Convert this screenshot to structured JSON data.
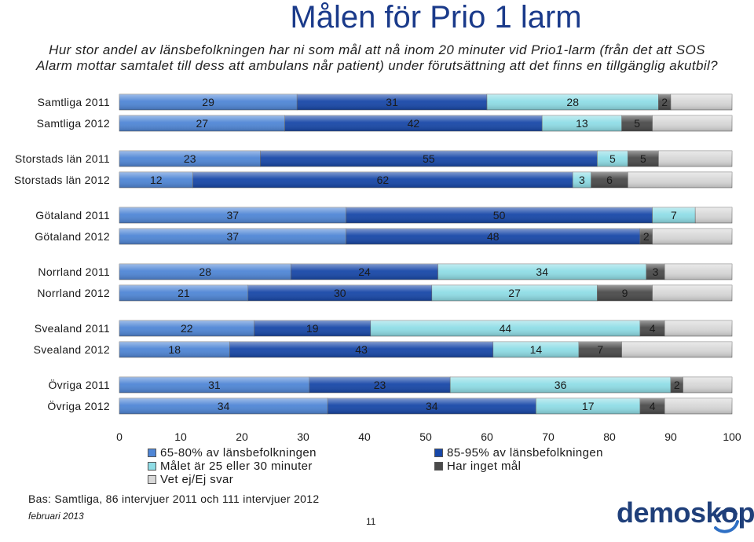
{
  "page": {
    "title": "Målen för Prio 1 larm",
    "subtitle": "Hur stor andel av länsbefolkningen har ni som mål att nå inom 20 minuter vid Prio1-larm (från det att SOS Alarm mottar samtalet till dess att ambulans når patient) under förutsättning att det finns en tillgänglig akutbil?",
    "base_note": "Bas: Samtliga, 86 intervjuer 2011 och 111 intervjuer 2012",
    "date": "februari 2013",
    "page_number": "11",
    "logo": "demoskop"
  },
  "colors": {
    "s0": "#4f86d6",
    "s1": "#1747a8",
    "s2": "#8fdde6",
    "s3": "#4a4a4a",
    "s4": "#d8d8d8"
  },
  "chart_data": {
    "type": "bar",
    "orientation": "horizontal",
    "stacked": true,
    "categories": [
      "Samtliga 2011",
      "Samtliga 2012",
      "Storstads län 2011",
      "Storstads län 2012",
      "Götaland 2011",
      "Götaland 2012",
      "Norrland 2011",
      "Norrland 2012",
      "Svealand 2011",
      "Svealand 2012",
      "Övriga 2011",
      "Övriga 2012"
    ],
    "series": [
      {
        "name": "65-80% av länsbefolkningen",
        "values": [
          29,
          27,
          23,
          12,
          37,
          37,
          28,
          21,
          22,
          18,
          31,
          34
        ]
      },
      {
        "name": "85-95% av länsbefolkningen",
        "values": [
          31,
          42,
          55,
          62,
          50,
          48,
          24,
          30,
          19,
          43,
          23,
          34
        ]
      },
      {
        "name": "Målet är 25 eller 30 minuter",
        "values": [
          28,
          13,
          5,
          3,
          7,
          0,
          34,
          27,
          44,
          14,
          36,
          17
        ]
      },
      {
        "name": "Har inget mål",
        "values": [
          2,
          5,
          5,
          6,
          0,
          2,
          3,
          9,
          4,
          7,
          2,
          4
        ]
      },
      {
        "name": "Vet ej/Ej svar",
        "values": [
          10,
          13,
          12,
          17,
          6,
          13,
          11,
          13,
          11,
          18,
          8,
          11
        ]
      }
    ],
    "series_labels": [
      [
        "29",
        "31",
        "28",
        "2",
        ""
      ],
      [
        "27",
        "42",
        "13",
        "5",
        ""
      ],
      [
        "23",
        "55",
        "5",
        "5",
        ""
      ],
      [
        "12",
        "62",
        "3",
        "6",
        ""
      ],
      [
        "37",
        "50",
        "7",
        "0",
        ""
      ],
      [
        "37",
        "48",
        "0",
        "2",
        ""
      ],
      [
        "28",
        "24",
        "34",
        "3",
        ""
      ],
      [
        "21",
        "30",
        "27",
        "9",
        ""
      ],
      [
        "22",
        "19",
        "44",
        "4",
        ""
      ],
      [
        "18",
        "43",
        "14",
        "7",
        ""
      ],
      [
        "31",
        "23",
        "36",
        "2",
        ""
      ],
      [
        "34",
        "34",
        "17",
        "4",
        ""
      ]
    ],
    "xlim": [
      0,
      100
    ],
    "x_ticks": [
      "0",
      "10",
      "20",
      "30",
      "40",
      "50",
      "60",
      "70",
      "80",
      "90",
      "100"
    ],
    "legend_position": "bottom"
  }
}
